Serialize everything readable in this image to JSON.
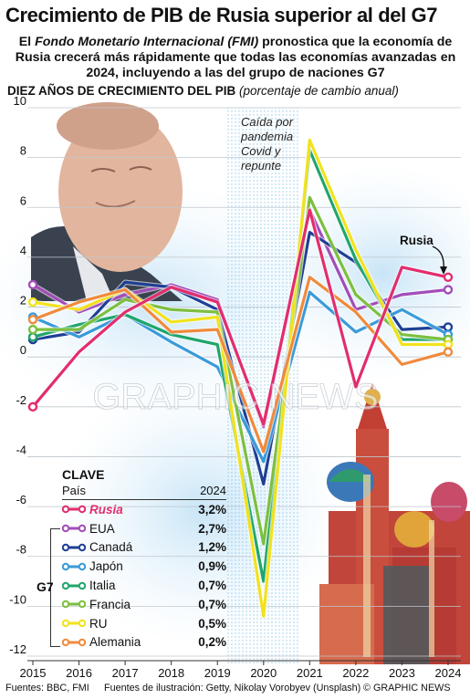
{
  "title": "Crecimiento de PIB de Rusia superior al del G7",
  "subtitle_parts": [
    {
      "text": "El ",
      "italic": false
    },
    {
      "text": "Fondo Monetario Internacional (FMI)",
      "italic": true
    },
    {
      "text": " pronostica que la economía de Rusia crecerá más rápidamente que todas las economías avanzadas en 2024, incluyendo a las del grupo de naciones G7",
      "italic": false
    }
  ],
  "chart_heading": "DIEZ AÑOS DE CRECIMIENTO DEL PIB",
  "chart_unit": "(porcentaje de cambio anual)",
  "annotation": "Caída por pandemia Covid y repunte",
  "russia_label": "Rusia",
  "watermark": "GRAPHIC NEWS",
  "legend": {
    "heading": "CLAVE",
    "col_country": "País",
    "col_year": "2024",
    "group_label": "G7"
  },
  "footer": {
    "sources": "Fuentes: BBC, FMI",
    "illustration": "Fuentes de ilustración: Getty, Nikolay Vorobyev (Unsplash)",
    "copyright": "© GRAPHIC NEWS"
  },
  "chart_data": {
    "type": "line",
    "x": [
      2015,
      2016,
      2017,
      2018,
      2019,
      2020,
      2021,
      2022,
      2023,
      2024
    ],
    "ylim": [
      -12,
      10
    ],
    "yticks": [
      -12,
      -10,
      -8,
      -6,
      -4,
      -2,
      0,
      2,
      4,
      6,
      8,
      10
    ],
    "series": [
      {
        "name": "Rusia",
        "color": "#e22d6e",
        "values": [
          -2.0,
          0.2,
          1.8,
          2.8,
          2.2,
          -2.7,
          5.9,
          -1.2,
          3.6,
          3.2
        ],
        "label_2024": "3,2%"
      },
      {
        "name": "EUA",
        "color": "#a24db8",
        "values": [
          2.9,
          1.8,
          2.5,
          2.9,
          2.3,
          -2.8,
          5.9,
          1.9,
          2.5,
          2.7
        ],
        "label_2024": "2,7%"
      },
      {
        "name": "Canadá",
        "color": "#1e3f94",
        "values": [
          0.7,
          1.0,
          3.0,
          2.8,
          1.9,
          -5.1,
          5.0,
          3.8,
          1.1,
          1.2
        ],
        "label_2024": "1,2%"
      },
      {
        "name": "Japón",
        "color": "#3a9ad9",
        "values": [
          1.6,
          0.8,
          1.7,
          0.6,
          -0.4,
          -4.2,
          2.6,
          1.0,
          1.9,
          0.9
        ],
        "label_2024": "0,9%"
      },
      {
        "name": "Italia",
        "color": "#1fa66b",
        "values": [
          0.8,
          1.3,
          1.7,
          0.9,
          0.5,
          -9.0,
          8.3,
          3.9,
          0.7,
          0.7
        ],
        "label_2024": "0,7%"
      },
      {
        "name": "Francia",
        "color": "#7dbf3f",
        "values": [
          1.1,
          1.1,
          2.3,
          1.9,
          1.8,
          -7.5,
          6.4,
          2.5,
          0.9,
          0.7
        ],
        "label_2024": "0,7%"
      },
      {
        "name": "RU",
        "color": "#f2e21d",
        "values": [
          2.2,
          1.9,
          2.7,
          1.4,
          1.6,
          -10.4,
          8.7,
          4.3,
          0.5,
          0.5
        ],
        "label_2024": "0,5%"
      },
      {
        "name": "Alemania",
        "color": "#f08a3c",
        "values": [
          1.5,
          2.2,
          2.7,
          1.0,
          1.1,
          -3.8,
          3.2,
          1.8,
          -0.3,
          0.2
        ],
        "label_2024": "0,2%"
      }
    ]
  }
}
